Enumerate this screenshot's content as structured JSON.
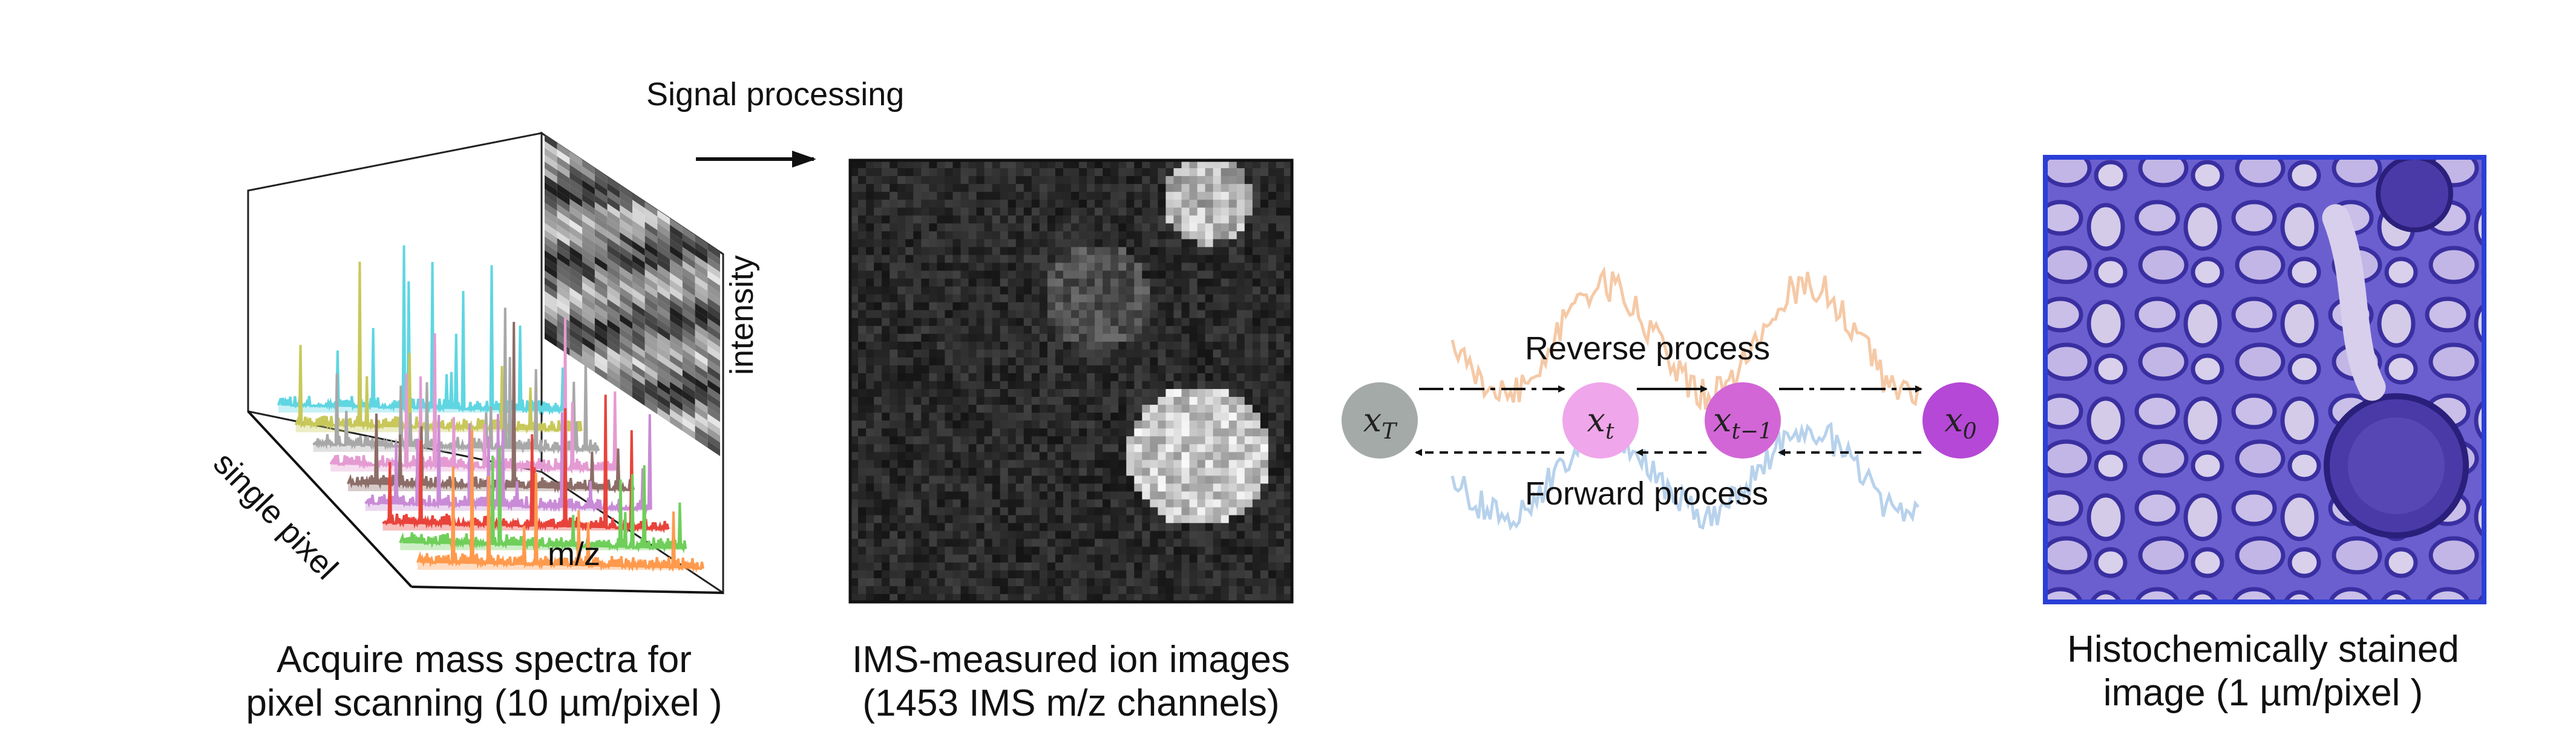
{
  "panel_spectra": {
    "axis_single_pixel": "single pixel",
    "axis_mz": "m/z",
    "axis_intensity": "intensity",
    "caption_line1": "Acquire mass spectra for",
    "caption_line2": "pixel scanning (10 µm/pixel )",
    "spectrum_colors": [
      "#ff9a4d",
      "#6fcf5a",
      "#e8433b",
      "#c98bd6",
      "#8c6d67",
      "#e49bd2",
      "#a8a8a8",
      "#c8c85a",
      "#5fd6e2"
    ]
  },
  "signal_processing": {
    "label": "Signal processing"
  },
  "panel_ion_image": {
    "caption_line1": "IMS-measured ion images",
    "caption_line2": "(1453 IMS m/z channels)"
  },
  "panel_diffusion": {
    "reverse_label": "Reverse process",
    "forward_label": "Forward process",
    "nodes": [
      {
        "base": "x",
        "sub": "T",
        "color": "#a4aaa8"
      },
      {
        "base": "x",
        "sub": "t",
        "color": "#f0a6ea"
      },
      {
        "base": "x",
        "sub": "t−1",
        "color": "#d266d6"
      },
      {
        "base": "x",
        "sub": "0",
        "color": "#b548d6"
      }
    ],
    "curve_colors": [
      "#f5c9a6",
      "#b8d2ec"
    ]
  },
  "panel_histology": {
    "caption_line1": "Histochemically stained",
    "caption_line2": "image (1 µm/pixel )",
    "frame_color": "#2a3fd6",
    "tissue_color": "#6b5fd0"
  }
}
